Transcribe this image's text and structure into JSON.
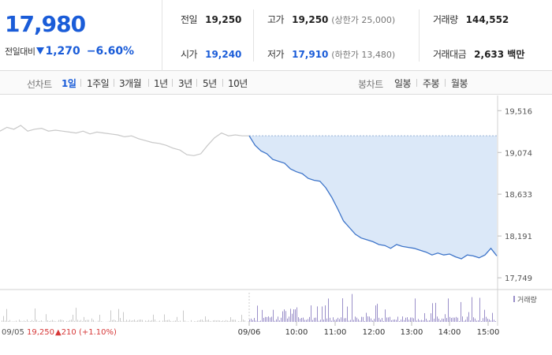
{
  "summary": {
    "current_price": "17,980",
    "change_label": "전일대비",
    "change_value": "1,270",
    "change_pct": "−6.60%",
    "stats": {
      "prev_close_label": "전일",
      "prev_close": "19,250",
      "high_label": "고가",
      "high": "19,250",
      "upper_limit_label": "(상한가 25,000)",
      "volume_label": "거래량",
      "volume": "144,552",
      "open_label": "시가",
      "open": "19,240",
      "low_label": "저가",
      "low": "17,910",
      "lower_limit_label": "(하한가 13,480)",
      "amount_label": "거래대금",
      "amount": "2,633 백만"
    }
  },
  "tabs": {
    "line_label": "선차트",
    "line_items": [
      "1일",
      "1주일",
      "3개월",
      "1년",
      "3년",
      "5년",
      "10년"
    ],
    "candle_label": "봉차트",
    "candle_items": [
      "일봉",
      "주봉",
      "월봉"
    ],
    "active": "1일"
  },
  "chart_data": {
    "type": "line",
    "y_axis": {
      "ticks": [
        19516,
        19074,
        18633,
        18191,
        17749
      ],
      "tick_labels": [
        "19,516",
        "19,074",
        "18,633",
        "18,191",
        "17,749"
      ],
      "range": [
        17700,
        19560
      ]
    },
    "reference_line": 19250,
    "x_ticks": [
      "09/05",
      "09/06",
      "10:00",
      "11:00",
      "12:00",
      "13:00",
      "14:00",
      "15:00"
    ],
    "prev_day_label": "09/05",
    "prev_day_close": "19,250",
    "prev_day_change": "▲210 (+1.10%)",
    "volume_legend": "거래량",
    "prev_day_series": [
      19300,
      19340,
      19320,
      19360,
      19300,
      19320,
      19330,
      19300,
      19310,
      19300,
      19290,
      19280,
      19300,
      19270,
      19290,
      19280,
      19270,
      19260,
      19240,
      19250,
      19220,
      19200,
      19180,
      19170,
      19150,
      19120,
      19100,
      19050,
      19040,
      19060,
      19150,
      19230,
      19280,
      19250,
      19260,
      19250,
      19250
    ],
    "today_series": [
      19250,
      19150,
      19090,
      19060,
      19000,
      18980,
      18960,
      18900,
      18870,
      18850,
      18800,
      18780,
      18770,
      18700,
      18600,
      18480,
      18350,
      18280,
      18210,
      18170,
      18150,
      18130,
      18100,
      18090,
      18060,
      18100,
      18080,
      18070,
      18060,
      18040,
      18020,
      17990,
      18010,
      17990,
      18000,
      17970,
      17950,
      17990,
      17980,
      17960,
      17990,
      18060,
      17980
    ]
  }
}
